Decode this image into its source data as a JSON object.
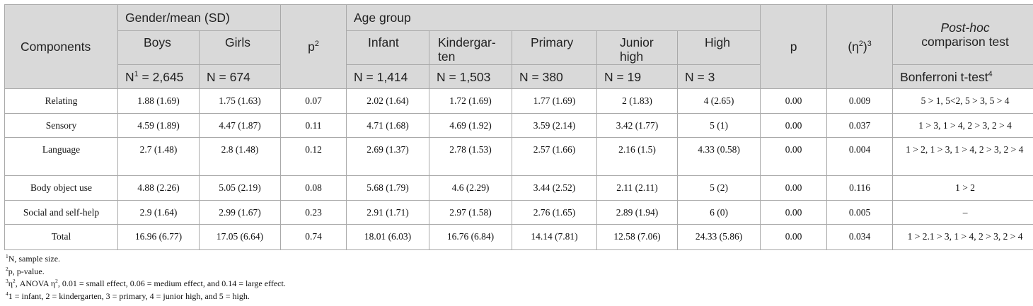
{
  "header": {
    "components": "Components",
    "gender_group": "Gender/mean (SD)",
    "boys": "Boys",
    "girls": "Girls",
    "p2_label": "p",
    "p2_sup": "2",
    "age_group": "Age group",
    "infant": "Infant",
    "kindergarten": "Kindergar­ten",
    "primary": "Primary",
    "junior_high": "Junior high",
    "high": "High",
    "p": "p",
    "eta": "(η",
    "eta_sup2": "2",
    "eta_close": ")",
    "eta_sup3": "3",
    "posthoc_italic": "Post-hoc",
    "posthoc_rest": "comparison test",
    "n_boys_prefix": "N",
    "n_boys_sup": "1",
    "n_boys_value": " = 2,645",
    "n_girls": "N = 674",
    "n_infant": "N = 1,414",
    "n_kindergarten": "N = 1,503",
    "n_primary": "N = 380",
    "n_junior": "N = 19",
    "n_high": "N = 3",
    "bonferroni": "Bonferroni t-test",
    "bonferroni_sup": "4"
  },
  "rows": [
    {
      "component": "Relating",
      "boys": "1.88 (1.69)",
      "girls": "1.75 (1.63)",
      "p2": "0.07",
      "infant": "2.02 (1.64)",
      "kindergarten": "1.72 (1.69)",
      "primary": "1.77 (1.69)",
      "junior": "2 (1.83)",
      "high": "4 (2.65)",
      "p": "0.00",
      "eta": "0.009",
      "posthoc": "5 > 1, 5<2, 5 > 3, 5 > 4"
    },
    {
      "component": "Sensory",
      "boys": "4.59 (1.89)",
      "girls": "4.47 (1.87)",
      "p2": "0.11",
      "infant": "4.71 (1.68)",
      "kindergarten": "4.69 (1.92)",
      "primary": "3.59 (2.14)",
      "junior": "3.42 (1.77)",
      "high": "5 (1)",
      "p": "0.00",
      "eta": "0.037",
      "posthoc": "1 > 3, 1 > 4, 2 > 3, 2 > 4"
    },
    {
      "component": "Language",
      "boys": "2.7 (1.48)",
      "girls": "2.8 (1.48)",
      "p2": "0.12",
      "infant": "2.69 (1.37)",
      "kindergarten": "2.78 (1.53)",
      "primary": "2.57 (1.66)",
      "junior": "2.16 (1.5)",
      "high": "4.33 (0.58)",
      "p": "0.00",
      "eta": "0.004",
      "posthoc": "1 > 2, 1 > 3, 1 > 4, 2 > 3, 2 > 4"
    },
    {
      "component": "Body object use",
      "boys": "4.88 (2.26)",
      "girls": "5.05 (2.19)",
      "p2": "0.08",
      "infant": "5.68 (1.79)",
      "kindergarten": "4.6 (2.29)",
      "primary": "3.44 (2.52)",
      "junior": "2.11 (2.11)",
      "high": "5 (2)",
      "p": "0.00",
      "eta": "0.116",
      "posthoc": "1 > 2"
    },
    {
      "component": "Social and self-help",
      "boys": "2.9 (1.64)",
      "girls": "2.99 (1.67)",
      "p2": "0.23",
      "infant": "2.91 (1.71)",
      "kindergarten": "2.97 (1.58)",
      "primary": "2.76 (1.65)",
      "junior": "2.89 (1.94)",
      "high": "6 (0)",
      "p": "0.00",
      "eta": "0.005",
      "posthoc": "–"
    },
    {
      "component": "Total",
      "boys": "16.96 (6.77)",
      "girls": "17.05 (6.64)",
      "p2": "0.74",
      "infant": "18.01 (6.03)",
      "kindergarten": "16.76 (6.84)",
      "primary": "14.14 (7.81)",
      "junior": "12.58 (7.06)",
      "high": "24.33 (5.86)",
      "p": "0.00",
      "eta": "0.034",
      "posthoc": "1 > 2.1 > 3, 1 > 4, 2 > 3, 2 > 4"
    }
  ],
  "footnotes": {
    "f1_mark": "1",
    "f1_text": "N, sample size.",
    "f2_mark": "2",
    "f2_text": "p, p-value.",
    "f3_mark": "3",
    "f3_a": "η",
    "f3_sup_a": "2",
    "f3_b": ", ANOVA η",
    "f3_sup_b": "2",
    "f3_c": ", 0.01 = small effect, 0.06 = medium effect, and 0.14 = large effect.",
    "f4_mark": "4",
    "f4_text": "1 = infant, 2 = kindergarten, 3 = primary, 4 = junior high, and 5 = high."
  }
}
